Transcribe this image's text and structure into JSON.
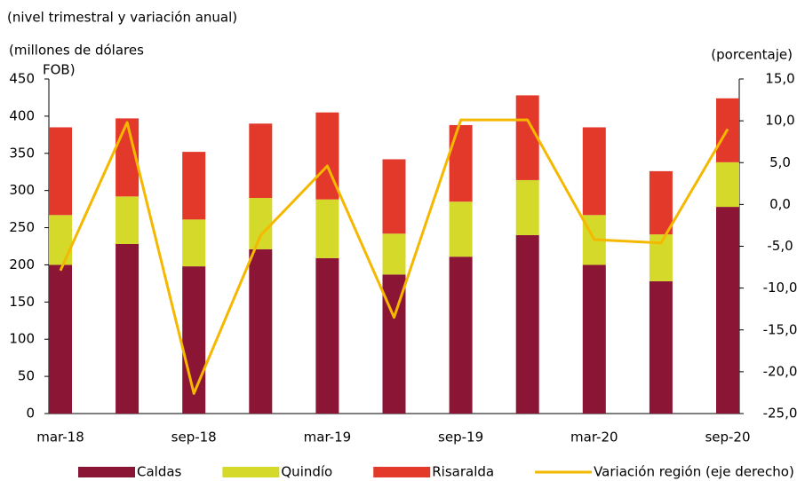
{
  "chart_data": {
    "type": "bar",
    "title": "(nivel trimestral y variación anual)",
    "y_label": [
      "(millones  de dólares",
      "FOB)"
    ],
    "y2_label": "(porcentaje)",
    "categories": [
      "mar-18",
      null,
      "sep-18",
      null,
      "mar-19",
      null,
      "sep-19",
      null,
      "mar-20",
      null,
      "sep-20"
    ],
    "stacked": true,
    "series": [
      {
        "name": "Caldas",
        "color": "#8b1535",
        "values": [
          200,
          228,
          198,
          221,
          209,
          187,
          211,
          240,
          200,
          178,
          278
        ]
      },
      {
        "name": "Quindío",
        "color": "#d4d92a",
        "values": [
          67,
          64,
          63,
          69,
          79,
          55,
          74,
          74,
          67,
          63,
          60
        ]
      },
      {
        "name": "Risaralda",
        "color": "#e3392a",
        "values": [
          118,
          105,
          91,
          100,
          117,
          100,
          103,
          114,
          118,
          85,
          86
        ]
      },
      {
        "name": "Variación región (eje derecho)",
        "color": "#f5b800",
        "type": "line",
        "axis": "y2",
        "values": [
          -7.9,
          9.8,
          -22.6,
          -3.7,
          4.6,
          -13.5,
          10.1,
          10.1,
          -4.2,
          -4.6,
          9.0
        ]
      }
    ],
    "ylim": [
      0,
      450
    ],
    "yticks": [
      0,
      50,
      100,
      150,
      200,
      250,
      300,
      350,
      400,
      450
    ],
    "y2lim": [
      -25,
      15
    ],
    "y2ticks": [
      {
        "value": -25,
        "label": "-25,0"
      },
      {
        "value": -20,
        "label": "-20,0"
      },
      {
        "value": -15,
        "label": "-15,0"
      },
      {
        "value": -10,
        "label": "-10,0"
      },
      {
        "value": -5,
        "label": "-5,0"
      },
      {
        "value": 0,
        "label": "0,0"
      },
      {
        "value": 5,
        "label": "5,0"
      },
      {
        "value": 10,
        "label": "10,0"
      },
      {
        "value": 15,
        "label": "15,0"
      }
    ],
    "legend": "bottom"
  }
}
